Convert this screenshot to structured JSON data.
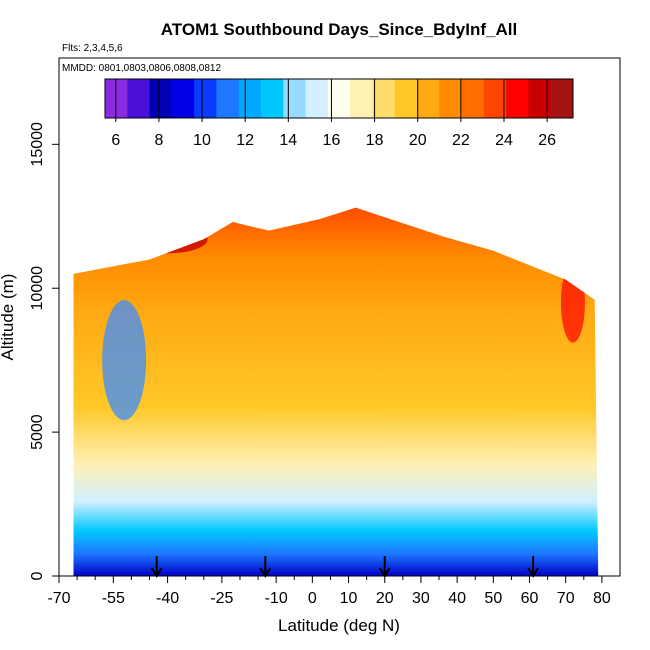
{
  "chart_data": {
    "type": "heatmap",
    "title": "ATOM1 Southbound Days_Since_BdyInf_All",
    "flights_label": "Flts: 2,3,4,5,6",
    "dates_label": "MMDD: 0801,0803,0806,0808,0812",
    "xlabel": "Latitude (deg N)",
    "ylabel": "Altitude (m)",
    "xlim": [
      -70,
      85
    ],
    "ylim": [
      0,
      18000
    ],
    "x_ticks": [
      "-70",
      "-55",
      "-40",
      "-25",
      "-10",
      "0",
      "10",
      "20",
      "30",
      "40",
      "50",
      "60",
      "70",
      "80"
    ],
    "x_minor": [
      -65,
      -60,
      -50,
      -45,
      -35,
      -30,
      -20,
      -15,
      -5,
      5,
      15,
      25,
      35,
      45,
      55,
      65,
      75
    ],
    "y_ticks": [
      "0",
      "5000",
      "10000",
      "15000"
    ],
    "colorbar": {
      "min": 5.5,
      "max": 27.2,
      "ticks": [
        "6",
        "8",
        "10",
        "12",
        "14",
        "16",
        "18",
        "20",
        "22",
        "24",
        "26"
      ],
      "colors": [
        "#8a2be2",
        "#4b10d8",
        "#0000b4",
        "#0000e6",
        "#0a3cff",
        "#1e78ff",
        "#00a8ff",
        "#00c8ff",
        "#96dcff",
        "#d2f0ff",
        "#fffff0",
        "#fff0b4",
        "#ffdc6e",
        "#ffc828",
        "#ffaa14",
        "#ff8c00",
        "#ff6e00",
        "#ff4600",
        "#ff0000",
        "#c80000",
        "#a51414"
      ]
    },
    "data_extent": {
      "lat_min": -66,
      "lat_max": 79,
      "top_profile": [
        [
          -66,
          10500
        ],
        [
          -45,
          11000
        ],
        [
          -30,
          11700
        ],
        [
          -22,
          12300
        ],
        [
          -12,
          12000
        ],
        [
          2,
          12400
        ],
        [
          12,
          12800
        ],
        [
          36,
          11800
        ],
        [
          50,
          11300
        ],
        [
          70,
          10300
        ],
        [
          78,
          9600
        ]
      ]
    },
    "surface_markers_lat": [
      -43,
      -13,
      20,
      61
    ]
  }
}
